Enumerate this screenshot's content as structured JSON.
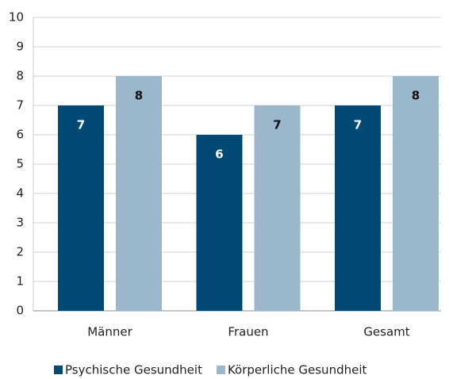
{
  "chart_data": {
    "type": "bar",
    "categories": [
      "Männer",
      "Frauen",
      "Gesamt"
    ],
    "series": [
      {
        "name": "Psychische Gesundheit",
        "color": "#004a75",
        "values": [
          7,
          6,
          7
        ]
      },
      {
        "name": "Körperliche Gesundheit",
        "color": "#9bb7cb",
        "values": [
          8,
          7,
          8
        ]
      }
    ],
    "ylim": [
      0,
      10
    ],
    "yticks": [
      0,
      1,
      2,
      3,
      4,
      5,
      6,
      7,
      8,
      9,
      10
    ],
    "grid": true,
    "legend": "bottom"
  }
}
